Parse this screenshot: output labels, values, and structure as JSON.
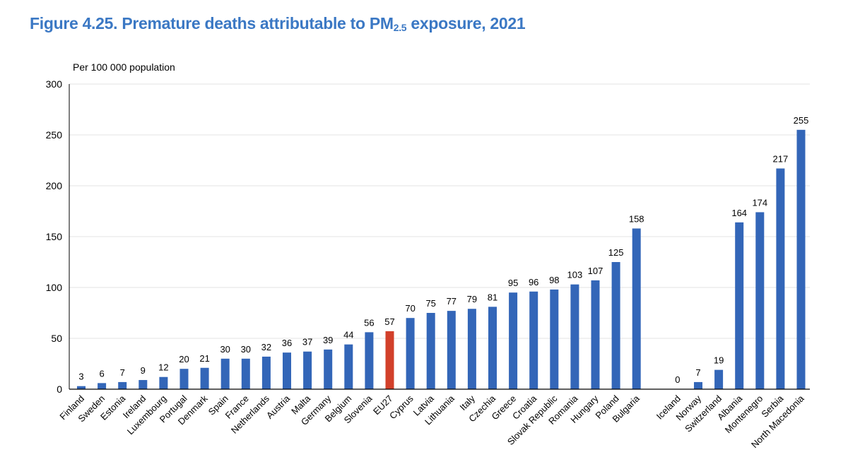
{
  "title": {
    "prefix": "Figure 4.25. Premature deaths attributable to PM",
    "sub": "2.5",
    "suffix": " exposure, 2021"
  },
  "colors": {
    "title": "#3b78c4",
    "bar": "#3366b8",
    "highlight": "#d2402a",
    "grid": "#e3e3e3",
    "axis": "#000000"
  },
  "chart_data": {
    "type": "bar",
    "title": "Figure 4.25. Premature deaths attributable to PM2.5 exposure, 2021",
    "ylabel": "Per 100 000 population",
    "xlabel": "",
    "ylim": [
      0,
      300
    ],
    "yticks": [
      0,
      50,
      100,
      150,
      200,
      250,
      300
    ],
    "grid": true,
    "highlight": "EU27",
    "groups": [
      {
        "categories": [
          "Finland",
          "Sweden",
          "Estonia",
          "Ireland",
          "Luxembourg",
          "Portugal",
          "Denmark",
          "Spain",
          "France",
          "Netherlands",
          "Austria",
          "Malta",
          "Germany",
          "Belgium",
          "Slovenia",
          "EU27",
          "Cyprus",
          "Latvia",
          "Lithuania",
          "Italy",
          "Czechia",
          "Greece",
          "Croatia",
          "Slovak Republic",
          "Romania",
          "Hungary",
          "Poland",
          "Bulgaria"
        ],
        "values": [
          3,
          6,
          7,
          9,
          12,
          20,
          21,
          30,
          30,
          32,
          36,
          37,
          39,
          44,
          56,
          57,
          70,
          75,
          77,
          79,
          81,
          95,
          96,
          98,
          103,
          107,
          125,
          158
        ]
      },
      {
        "categories": [
          "Iceland",
          "Norway",
          "Switzerland",
          "Albania",
          "Montenegro",
          "Serbia",
          "North Macedonia"
        ],
        "values": [
          0,
          7,
          19,
          164,
          174,
          217,
          255
        ]
      }
    ]
  }
}
